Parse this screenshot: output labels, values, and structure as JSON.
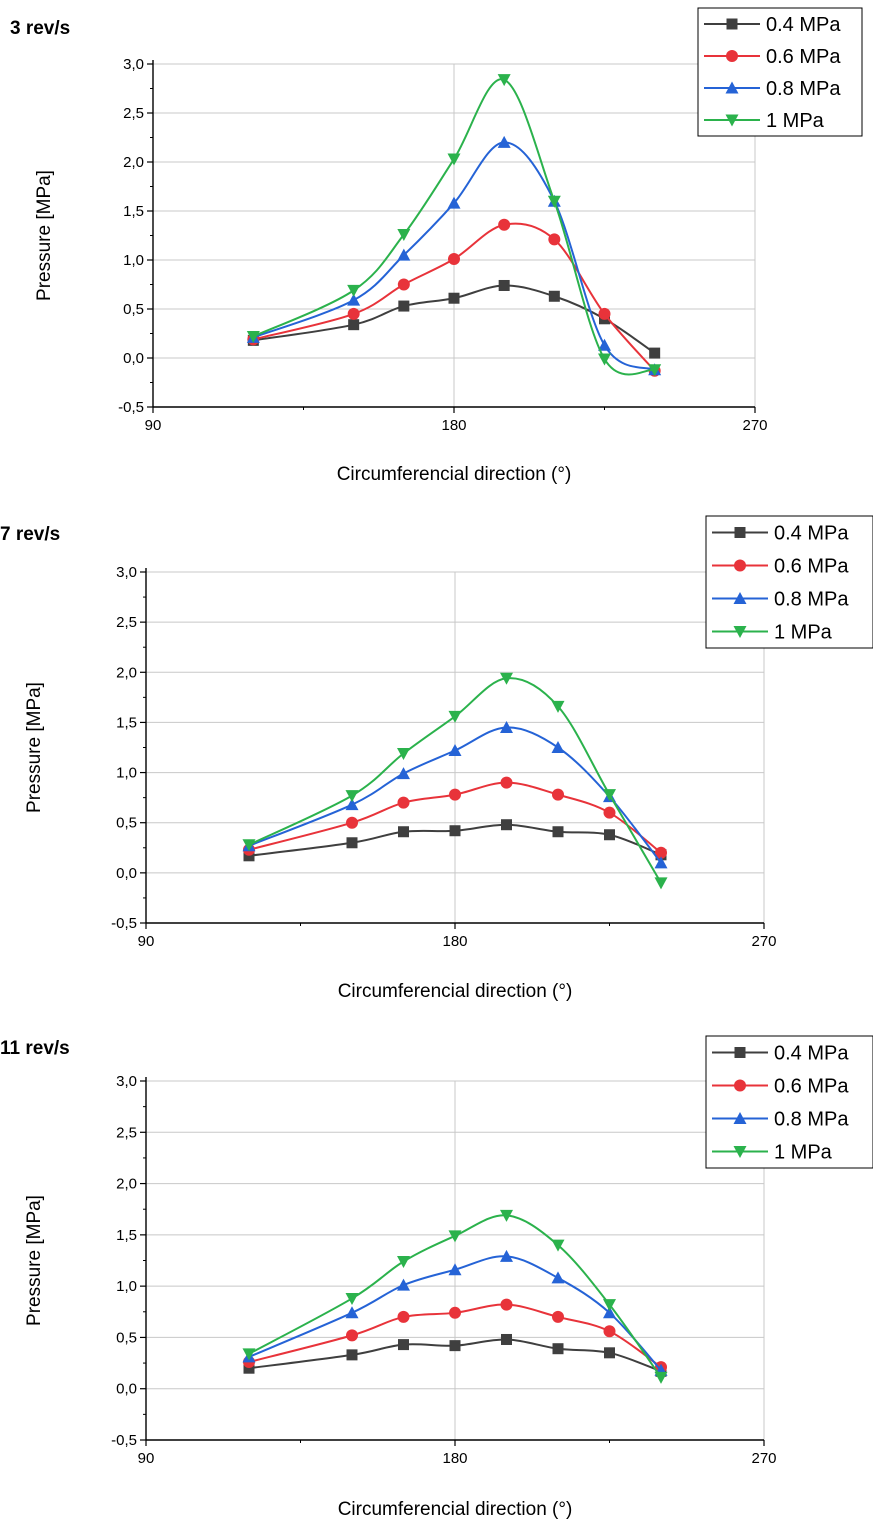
{
  "chart_data": [
    {
      "type": "line",
      "title": "3 rev/s",
      "xlabel": "Circumferencial direction (°)",
      "ylabel": "Pressure [MPa]",
      "xlim": [
        90,
        270
      ],
      "ylim": [
        -0.5,
        3.0
      ],
      "xticks": [
        90,
        180,
        270
      ],
      "xtick_labels": [
        "90",
        "180",
        "270"
      ],
      "yticks": [
        -0.5,
        0.0,
        0.5,
        1.0,
        1.5,
        2.0,
        2.5,
        3.0
      ],
      "ytick_labels": [
        "-0,5",
        "0,0",
        "0,5",
        "1,0",
        "1,5",
        "2,0",
        "2,5",
        "3,0"
      ],
      "grid": true,
      "legend": "top-right",
      "x": [
        120,
        150,
        165,
        180,
        195,
        210,
        225,
        240
      ],
      "series": [
        {
          "name": "0.4 MPa",
          "marker": "square",
          "color": "#3f3f3f",
          "values": [
            0.18,
            0.34,
            0.53,
            0.61,
            0.74,
            0.63,
            0.4,
            0.05
          ]
        },
        {
          "name": "0.6 MPa",
          "marker": "circle",
          "color": "#e8333a",
          "values": [
            0.19,
            0.45,
            0.75,
            1.01,
            1.36,
            1.21,
            0.45,
            -0.13
          ]
        },
        {
          "name": "0.8 MPa",
          "marker": "triangle-up",
          "color": "#2563d6",
          "values": [
            0.21,
            0.59,
            1.05,
            1.58,
            2.2,
            1.6,
            0.13,
            -0.12
          ]
        },
        {
          "name": "1 MPa",
          "marker": "triangle-down",
          "color": "#2bb24c",
          "values": [
            0.22,
            0.69,
            1.26,
            2.03,
            2.84,
            1.6,
            -0.01,
            -0.12
          ]
        }
      ]
    },
    {
      "type": "line",
      "title": "7 rev/s",
      "xlabel": "Circumferencial direction (°)",
      "ylabel": "Pressure [MPa]",
      "xlim": [
        90,
        270
      ],
      "ylim": [
        -0.5,
        3.0
      ],
      "xticks": [
        90,
        180,
        270
      ],
      "xtick_labels": [
        "90",
        "180",
        "270"
      ],
      "yticks": [
        -0.5,
        0.0,
        0.5,
        1.0,
        1.5,
        2.0,
        2.5,
        3.0
      ],
      "ytick_labels": [
        "-0,5",
        "0,0",
        "0,5",
        "1,0",
        "1,5",
        "2,0",
        "2,5",
        "3,0"
      ],
      "grid": true,
      "legend": "top-right",
      "x": [
        120,
        150,
        165,
        180,
        195,
        210,
        225,
        240
      ],
      "series": [
        {
          "name": "0.4 MPa",
          "marker": "square",
          "color": "#3f3f3f",
          "values": [
            0.17,
            0.3,
            0.41,
            0.42,
            0.48,
            0.41,
            0.38,
            0.18
          ]
        },
        {
          "name": "0.6 MPa",
          "marker": "circle",
          "color": "#e8333a",
          "values": [
            0.23,
            0.5,
            0.7,
            0.78,
            0.9,
            0.78,
            0.6,
            0.2
          ]
        },
        {
          "name": "0.8 MPa",
          "marker": "triangle-up",
          "color": "#2563d6",
          "values": [
            0.27,
            0.68,
            0.99,
            1.22,
            1.45,
            1.25,
            0.76,
            0.1
          ]
        },
        {
          "name": "1 MPa",
          "marker": "triangle-down",
          "color": "#2bb24c",
          "values": [
            0.28,
            0.77,
            1.19,
            1.56,
            1.94,
            1.66,
            0.78,
            -0.1
          ]
        }
      ]
    },
    {
      "type": "line",
      "title": "11 rev/s",
      "xlabel": "Circumferencial direction (°)",
      "ylabel": "Pressure [MPa]",
      "xlim": [
        90,
        270
      ],
      "ylim": [
        -0.5,
        3.0
      ],
      "xticks": [
        90,
        180,
        270
      ],
      "xtick_labels": [
        "90",
        "180",
        "270"
      ],
      "yticks": [
        -0.5,
        0.0,
        0.5,
        1.0,
        1.5,
        2.0,
        2.5,
        3.0
      ],
      "ytick_labels": [
        "-0,5",
        "0,0",
        "0,5",
        "1,0",
        "1,5",
        "2,0",
        "2,5",
        "3,0"
      ],
      "grid": true,
      "legend": "top-right",
      "x": [
        120,
        150,
        165,
        180,
        195,
        210,
        225,
        240
      ],
      "series": [
        {
          "name": "0.4 MPa",
          "marker": "square",
          "color": "#3f3f3f",
          "values": [
            0.2,
            0.33,
            0.43,
            0.42,
            0.48,
            0.39,
            0.35,
            0.17
          ]
        },
        {
          "name": "0.6 MPa",
          "marker": "circle",
          "color": "#e8333a",
          "values": [
            0.26,
            0.52,
            0.7,
            0.74,
            0.82,
            0.7,
            0.56,
            0.21
          ]
        },
        {
          "name": "0.8 MPa",
          "marker": "triangle-up",
          "color": "#2563d6",
          "values": [
            0.31,
            0.74,
            1.01,
            1.16,
            1.29,
            1.08,
            0.74,
            0.18
          ]
        },
        {
          "name": "1 MPa",
          "marker": "triangle-down",
          "color": "#2bb24c",
          "values": [
            0.34,
            0.88,
            1.24,
            1.49,
            1.69,
            1.4,
            0.82,
            0.11
          ]
        }
      ]
    }
  ]
}
